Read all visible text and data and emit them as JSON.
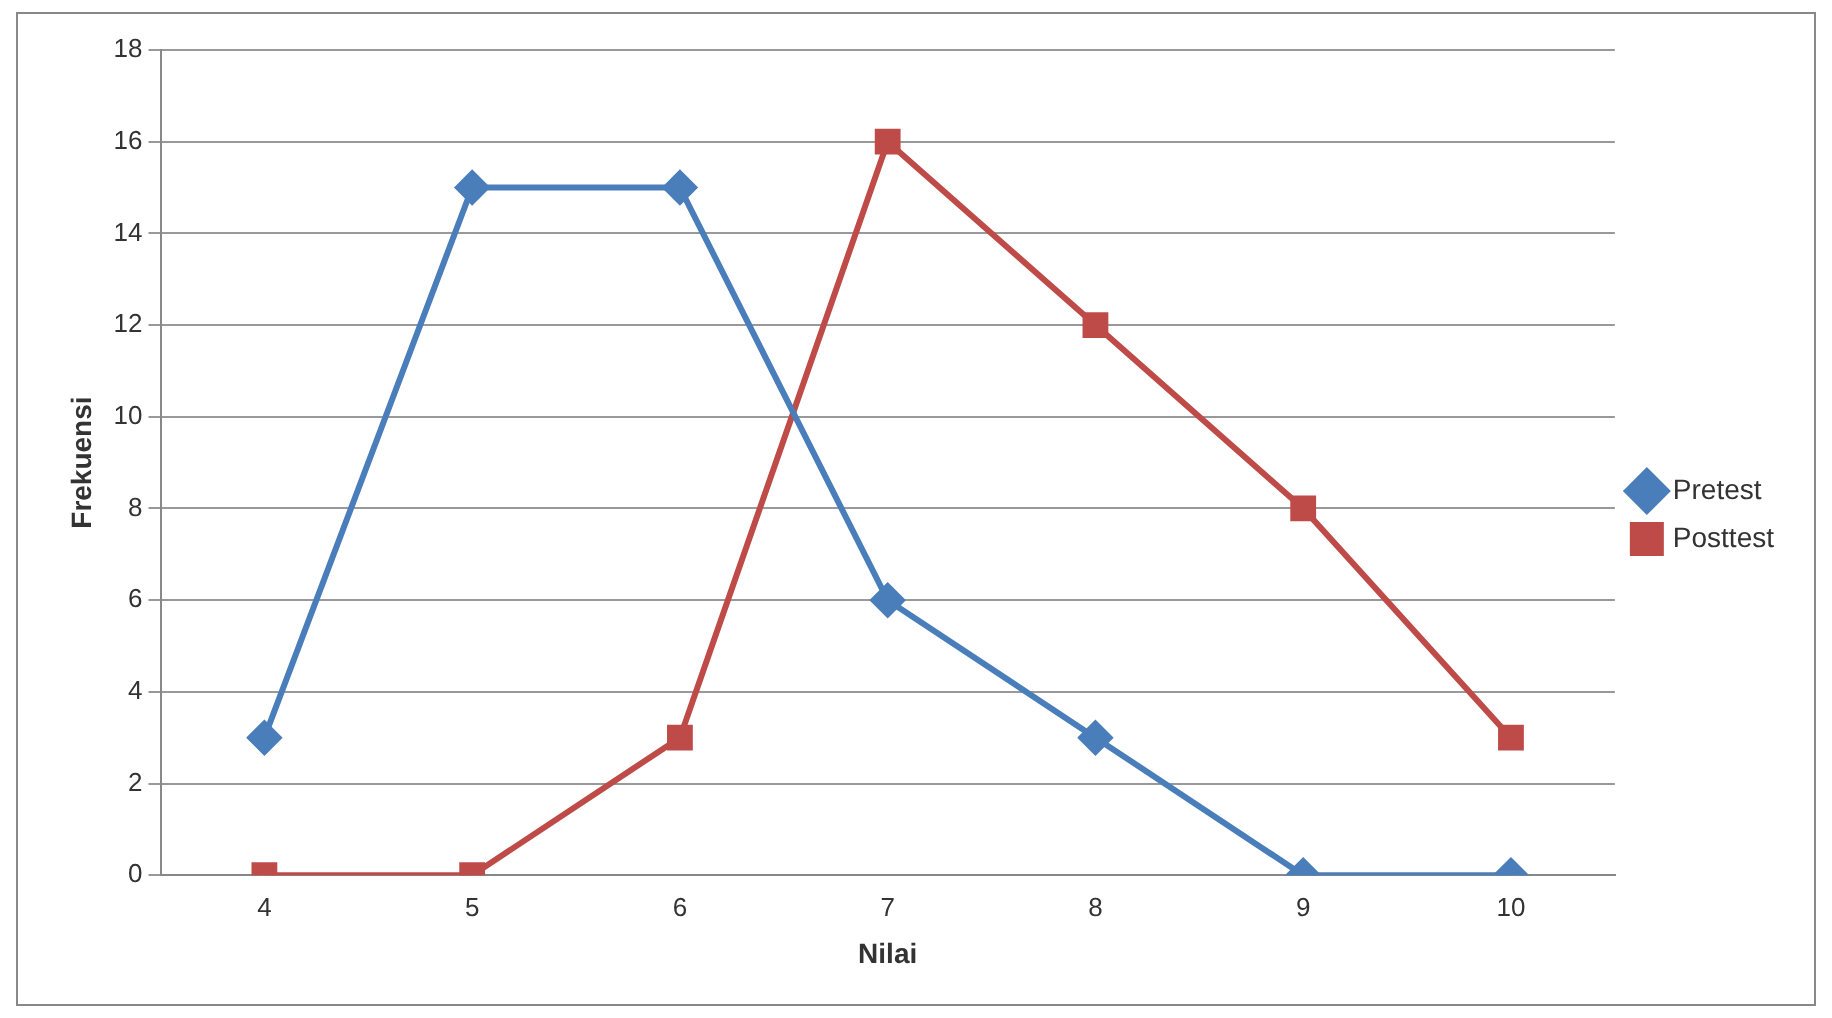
{
  "chart_data": {
    "type": "line",
    "xlabel": "Nilai",
    "ylabel": "Frekuensi",
    "categories": [
      "4",
      "5",
      "6",
      "7",
      "8",
      "9",
      "10"
    ],
    "series": [
      {
        "name": "Pretest",
        "color": "#4a7ebb",
        "marker": "diamond",
        "values": [
          3,
          15,
          15,
          6,
          3,
          0,
          0
        ]
      },
      {
        "name": "Posttest",
        "color": "#be4b48",
        "marker": "square",
        "values": [
          0,
          0,
          3,
          16,
          12,
          8,
          3
        ]
      }
    ],
    "ylim": [
      0,
      18
    ],
    "yticks": [
      0,
      2,
      4,
      6,
      8,
      10,
      12,
      14,
      16,
      18
    ],
    "grid": "y",
    "legend": "right"
  }
}
